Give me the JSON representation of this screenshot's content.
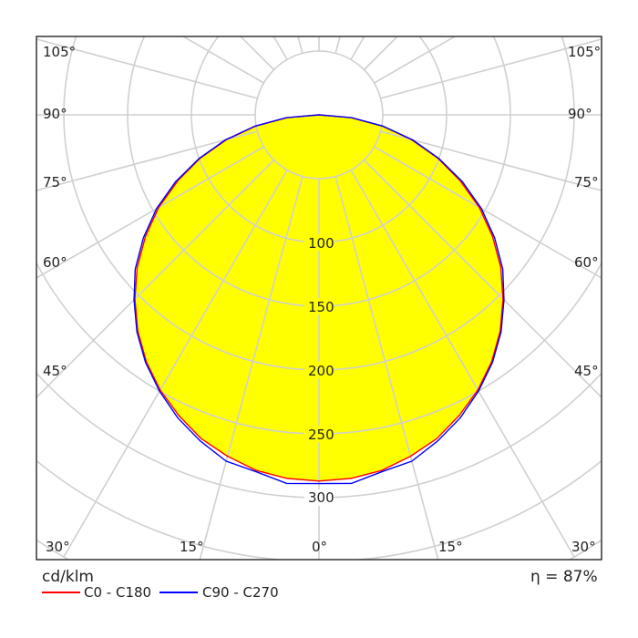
{
  "chart_data": {
    "type": "polar",
    "unit_label": "cd/klm",
    "efficiency_label": "η = 87%",
    "radial_ticks": [
      100,
      150,
      200,
      250,
      300
    ],
    "radial_grid_step": 50,
    "radial_max": 400,
    "angle_labels": {
      "bottom": [
        "30°",
        "15°",
        "0°",
        "15°",
        "30°"
      ],
      "left": [
        "45°",
        "60°",
        "75°",
        "90°",
        "105°"
      ],
      "right": [
        "45°",
        "60°",
        "75°",
        "90°",
        "105°"
      ]
    },
    "angle_grid_step_deg": 15,
    "grid": true,
    "fill_color": "#ffff00",
    "gamma_deg": [
      0,
      5,
      10,
      15,
      20,
      25,
      30,
      35,
      40,
      45,
      50,
      55,
      60,
      65,
      70,
      75,
      80,
      85,
      90
    ],
    "series": [
      {
        "name": "C0 - C180",
        "color": "#ff0000",
        "values": [
          287,
          286,
          283,
          277,
          270,
          260,
          249,
          236,
          221,
          204,
          186,
          166,
          145,
          122,
          99,
          75,
          50,
          25,
          0
        ]
      },
      {
        "name": "C90 - C270",
        "color": "#0000ff",
        "values": [
          289,
          290,
          284,
          281,
          272,
          262,
          250,
          237,
          222,
          205,
          188,
          168,
          147,
          124,
          100,
          76,
          51,
          26,
          0
        ]
      }
    ],
    "legend_position": "bottom-left"
  }
}
